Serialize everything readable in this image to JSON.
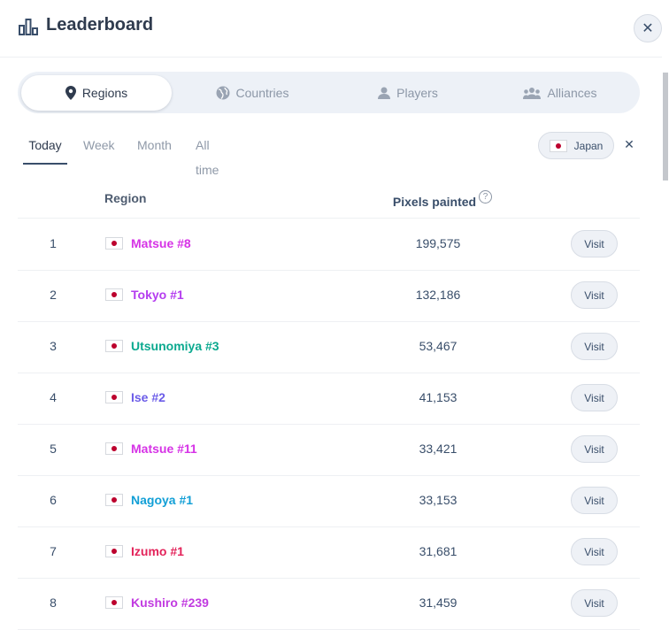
{
  "header": {
    "title": "Leaderboard",
    "icon": "bar-chart-icon",
    "close_icon": "close-icon",
    "close_glyph": "✕"
  },
  "tabs": [
    {
      "label": "Regions",
      "icon": "map-pin-icon",
      "active": true
    },
    {
      "label": "Countries",
      "icon": "globe-icon",
      "active": false
    },
    {
      "label": "Players",
      "icon": "user-icon",
      "active": false
    },
    {
      "label": "Alliances",
      "icon": "users-icon",
      "active": false
    }
  ],
  "time_tabs": [
    "Today",
    "Week",
    "Month",
    "All time"
  ],
  "active_time_tab": "Today",
  "filter": {
    "label": "Japan",
    "clear_glyph": "✕"
  },
  "table": {
    "headers": {
      "region": "Region",
      "pixels": "Pixels painted",
      "help": "?"
    },
    "rows": [
      {
        "rank": "1",
        "name": "Matsue #8",
        "pixels": "199,575",
        "color": "#d633e6",
        "action": "Visit"
      },
      {
        "rank": "2",
        "name": "Tokyo #1",
        "pixels": "132,186",
        "color": "#b43cef",
        "action": "Visit"
      },
      {
        "rank": "3",
        "name": "Utsunomiya #3",
        "pixels": "53,467",
        "color": "#0ba98f",
        "action": "Visit"
      },
      {
        "rank": "4",
        "name": "Ise #2",
        "pixels": "41,153",
        "color": "#6b5ce8",
        "action": "Visit"
      },
      {
        "rank": "5",
        "name": "Matsue #11",
        "pixels": "33,421",
        "color": "#d633e6",
        "action": "Visit"
      },
      {
        "rank": "6",
        "name": "Nagoya #1",
        "pixels": "33,153",
        "color": "#129fd6",
        "action": "Visit"
      },
      {
        "rank": "7",
        "name": "Izumo #1",
        "pixels": "31,681",
        "color": "#e3235a",
        "action": "Visit"
      },
      {
        "rank": "8",
        "name": "Kushiro #239",
        "pixels": "31,459",
        "color": "#c13be0",
        "action": "Visit"
      }
    ]
  }
}
